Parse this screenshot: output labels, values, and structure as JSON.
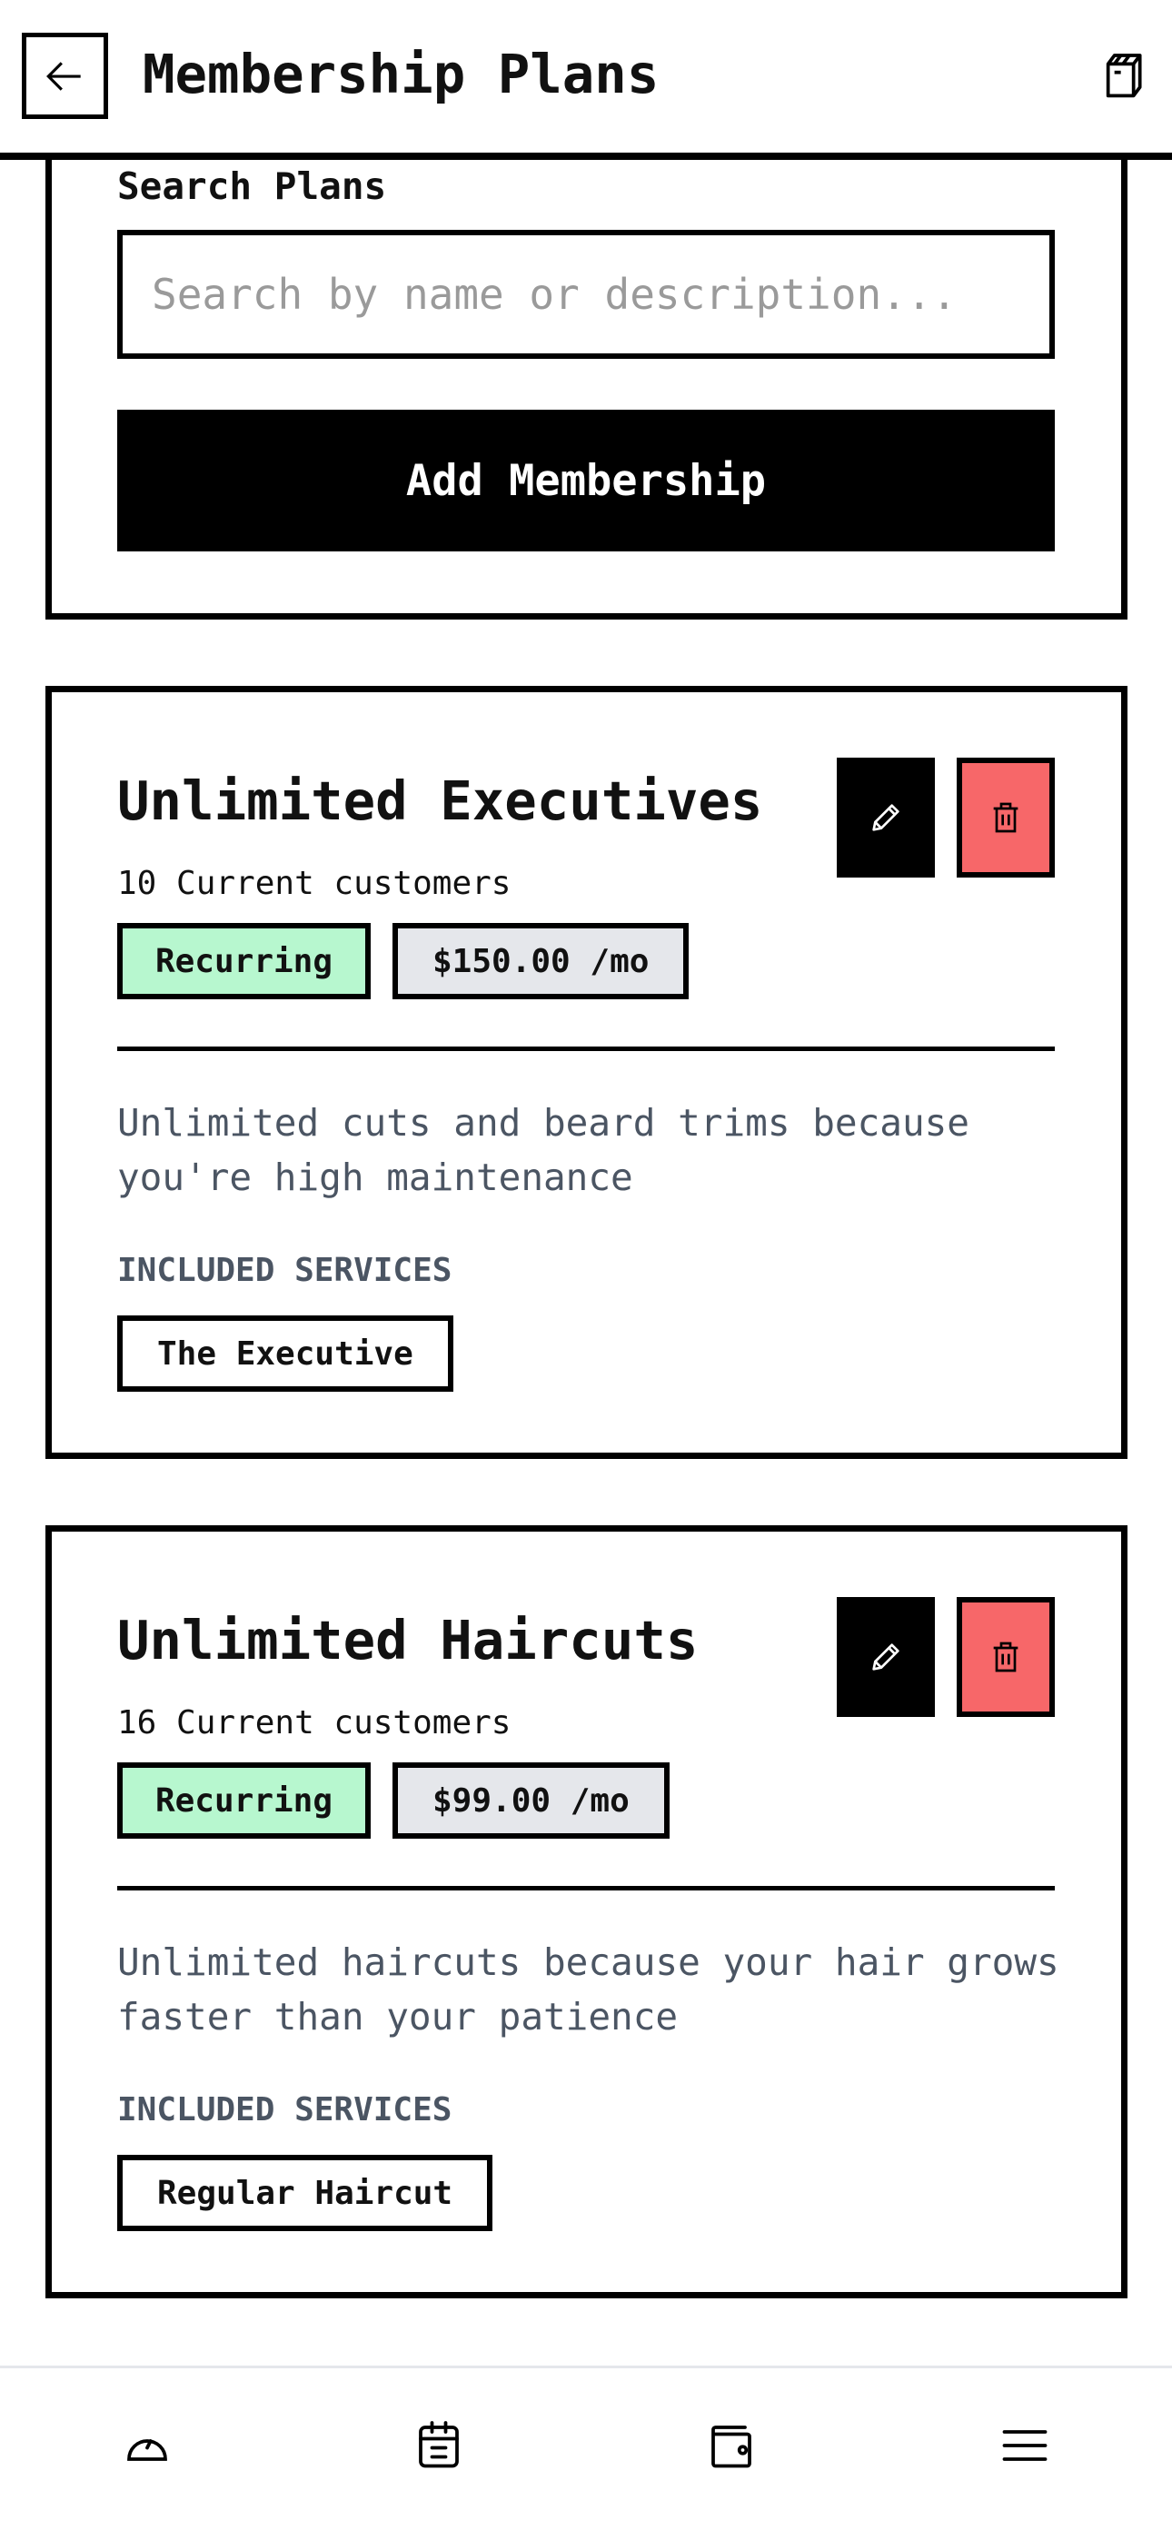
{
  "header": {
    "title": "Membership Plans",
    "back_icon": "arrow-left-icon",
    "action_icon": "box-icon"
  },
  "search": {
    "label": "Search Plans",
    "placeholder": "Search by name or description...",
    "value": "",
    "add_button": "Add Membership"
  },
  "memberships": [
    {
      "title": "Unlimited Executives",
      "customers": "10 Current customers",
      "type": "Recurring",
      "price": "$150.00 /mo",
      "description": "Unlimited cuts and beard trims because you're high maintenance",
      "included_label": "INCLUDED SERVICES",
      "services": [
        "The Executive"
      ]
    },
    {
      "title": "Unlimited Haircuts",
      "customers": "16 Current customers",
      "type": "Recurring",
      "price": "$99.00 /mo",
      "description": "Unlimited haircuts because your hair grows faster than your patience",
      "included_label": "INCLUDED SERVICES",
      "services": [
        "Regular Haircut"
      ]
    }
  ],
  "bottom_nav": [
    "dashboard-icon",
    "calendar-icon",
    "wallet-icon",
    "menu-icon"
  ],
  "colors": {
    "recurring_badge": "#b7f7cf",
    "price_badge": "#e5e7eb",
    "delete_button": "#f76769",
    "muted_text": "#4b5563"
  }
}
